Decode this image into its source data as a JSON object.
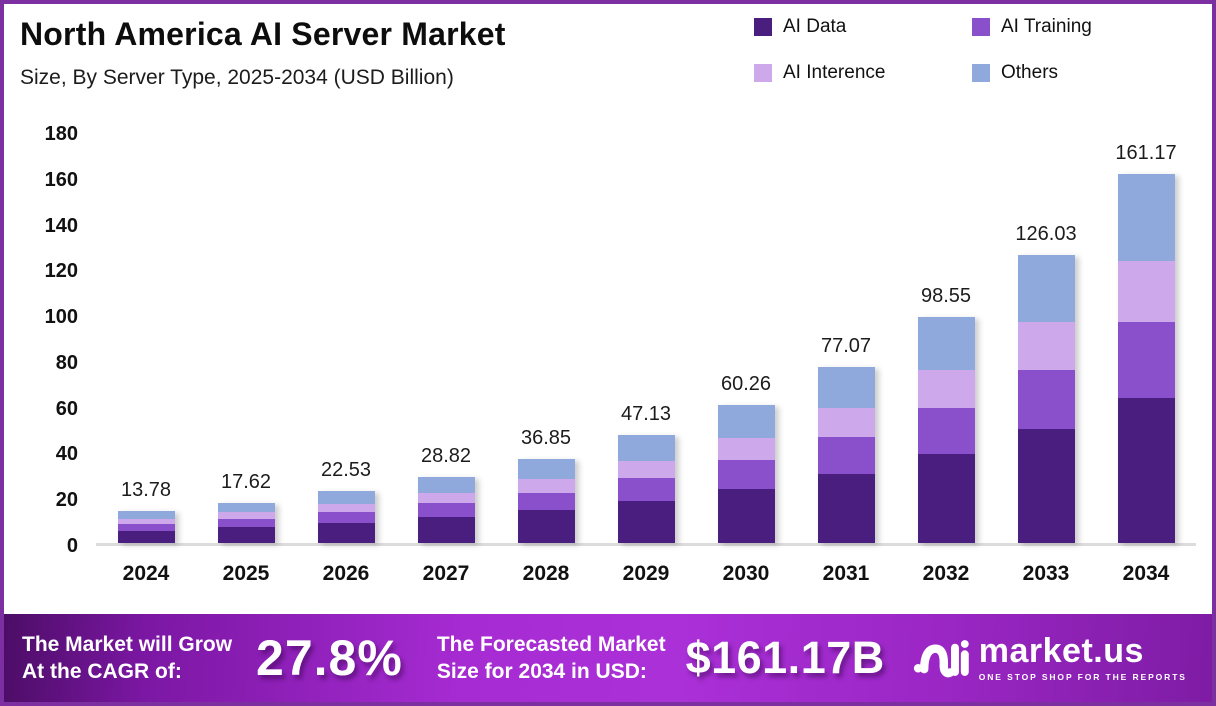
{
  "header": {
    "title": "North America AI Server Market",
    "subtitle": "Size, By Server Type, 2025-2034 (USD Billion)"
  },
  "legend": {
    "items": [
      {
        "label": "AI Data",
        "color": "#4A1E7E"
      },
      {
        "label": "AI Training",
        "color": "#8A50CC"
      },
      {
        "label": "AI Interence",
        "color": "#CDA8EB"
      },
      {
        "label": "Others",
        "color": "#8FA9DC"
      }
    ]
  },
  "chart_data": {
    "type": "bar",
    "stacked": true,
    "title": "North America AI Server Market Size, By Server Type, 2025-2034 (USD Billion)",
    "categories": [
      "2024",
      "2025",
      "2026",
      "2027",
      "2028",
      "2029",
      "2030",
      "2031",
      "2032",
      "2033",
      "2034"
    ],
    "series": [
      {
        "name": "AI Data",
        "color": "#4A1E7E",
        "values": [
          5.43,
          6.94,
          8.88,
          11.36,
          14.52,
          18.57,
          23.74,
          30.37,
          38.83,
          49.66,
          63.5
        ]
      },
      {
        "name": "AI Training",
        "color": "#8A50CC",
        "values": [
          2.82,
          3.61,
          4.62,
          5.91,
          7.55,
          9.66,
          12.35,
          15.8,
          20.2,
          25.84,
          33.04
        ]
      },
      {
        "name": "AI Interence",
        "color": "#CDA8EB",
        "values": [
          2.29,
          2.93,
          3.74,
          4.78,
          6.12,
          7.82,
          10.0,
          12.79,
          16.36,
          20.92,
          26.75
        ]
      },
      {
        "name": "Others",
        "color": "#8FA9DC",
        "values": [
          3.24,
          4.14,
          5.29,
          6.77,
          8.66,
          11.08,
          14.17,
          18.11,
          23.16,
          29.61,
          37.88
        ]
      }
    ],
    "totals": [
      13.78,
      17.62,
      22.53,
      28.82,
      36.85,
      47.13,
      60.26,
      77.07,
      98.55,
      126.03,
      161.17
    ],
    "total_labels": [
      "13.78",
      "17.62",
      "22.53",
      "28.82",
      "36.85",
      "47.13",
      "60.26",
      "77.07",
      "98.55",
      "126.03",
      "161.17"
    ],
    "ylim": [
      0,
      180
    ],
    "yticks": [
      0,
      20,
      40,
      60,
      80,
      100,
      120,
      140,
      160,
      180
    ],
    "grid": false,
    "legend_position": "top-right"
  },
  "banner": {
    "cagr_label": "The Market will Grow\nAt the CAGR of:",
    "cagr_value": "27.8%",
    "forecast_label": "The Forecasted Market\nSize for 2034 in USD:",
    "forecast_value": "$161.17B",
    "logo_text": "market.us",
    "logo_tagline": "ONE STOP SHOP FOR THE REPORTS"
  }
}
